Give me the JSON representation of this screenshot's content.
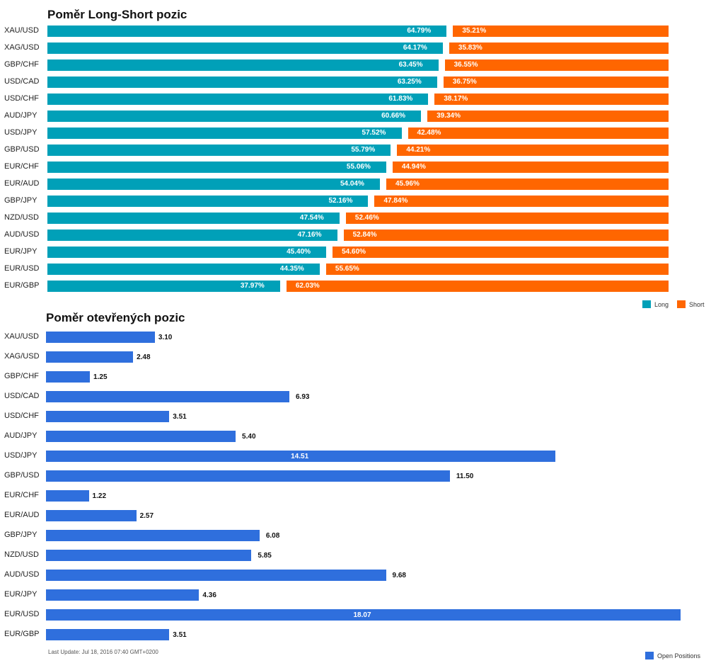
{
  "colors": {
    "long": "#00a0b8",
    "short": "#ff6600",
    "open": "#2f6fdd"
  },
  "chart_data": [
    {
      "type": "bar",
      "stacked": true,
      "orientation": "horizontal",
      "title": "Poměr Long-Short pozic",
      "categories": [
        "XAU/USD",
        "XAG/USD",
        "GBP/CHF",
        "USD/CAD",
        "USD/CHF",
        "AUD/JPY",
        "USD/JPY",
        "GBP/USD",
        "EUR/CHF",
        "EUR/AUD",
        "GBP/JPY",
        "NZD/USD",
        "AUD/USD",
        "EUR/JPY",
        "EUR/USD",
        "EUR/GBP"
      ],
      "series": [
        {
          "name": "Long",
          "values": [
            64.79,
            64.17,
            63.45,
            63.25,
            61.83,
            60.66,
            57.52,
            55.79,
            55.06,
            54.04,
            52.16,
            47.54,
            47.16,
            45.4,
            44.35,
            37.97
          ],
          "labels": [
            "64.79%",
            "64.17%",
            "63.45%",
            "63.25%",
            "61.83%",
            "60.66%",
            "57.52%",
            "55.79%",
            "55.06%",
            "54.04%",
            "52.16%",
            "47.54%",
            "47.16%",
            "45.40%",
            "44.35%",
            "37.97%"
          ]
        },
        {
          "name": "Short",
          "values": [
            35.21,
            35.83,
            36.55,
            36.75,
            38.17,
            39.34,
            42.48,
            44.21,
            44.94,
            45.96,
            47.84,
            52.46,
            52.84,
            54.6,
            55.65,
            62.03
          ],
          "labels": [
            "35.21%",
            "35.83%",
            "36.55%",
            "36.75%",
            "38.17%",
            "39.34%",
            "42.48%",
            "44.21%",
            "44.94%",
            "45.96%",
            "47.84%",
            "52.46%",
            "52.84%",
            "54.60%",
            "55.65%",
            "62.03%"
          ]
        }
      ],
      "xlim": [
        0,
        100
      ],
      "legend": "bottom-right",
      "grid": false
    },
    {
      "type": "bar",
      "orientation": "horizontal",
      "title": "Poměr otevřených pozic",
      "categories": [
        "XAU/USD",
        "XAG/USD",
        "GBP/CHF",
        "USD/CAD",
        "USD/CHF",
        "AUD/JPY",
        "USD/JPY",
        "GBP/USD",
        "EUR/CHF",
        "EUR/AUD",
        "GBP/JPY",
        "NZD/USD",
        "AUD/USD",
        "EUR/JPY",
        "EUR/USD",
        "EUR/GBP"
      ],
      "series": [
        {
          "name": "Open Positions",
          "values": [
            3.1,
            2.48,
            1.25,
            6.93,
            3.51,
            5.4,
            14.51,
            11.5,
            1.22,
            2.57,
            6.08,
            5.85,
            9.68,
            4.36,
            18.07,
            3.51
          ],
          "labels": [
            "3.10",
            "2.48",
            "1.25",
            "6.93",
            "3.51",
            "5.40",
            "14.51",
            "11.50",
            "1.22",
            "2.57",
            "6.08",
            "5.85",
            "9.68",
            "4.36",
            "18.07",
            "3.51"
          ]
        }
      ],
      "xlim": [
        0,
        18.07
      ],
      "legend": "bottom-right",
      "grid": false
    }
  ],
  "footer": {
    "last_update": "Last Update: Jul 18, 2016 07:40 GMT+0200"
  }
}
